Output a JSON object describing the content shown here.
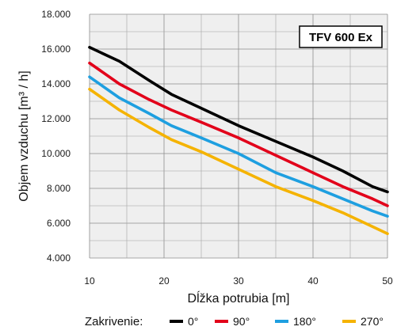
{
  "chart_data": {
    "type": "line",
    "title": "TFV 600 Ex",
    "xlabel": "Dĺžka potrubia [m]",
    "ylabel": "Objem vzduchu [m³ / h]",
    "xlim": [
      10,
      50
    ],
    "ylim": [
      4000,
      18000
    ],
    "x_ticks": [
      10,
      20,
      30,
      40,
      50
    ],
    "x_tick_labels": [
      "10",
      "20",
      "30",
      "40",
      "50"
    ],
    "y_ticks": [
      4000,
      6000,
      8000,
      10000,
      12000,
      14000,
      16000,
      18000
    ],
    "y_tick_labels": [
      "4.000",
      "6.000",
      "8.000",
      "10.000",
      "12.000",
      "14.000",
      "16.000",
      "18.000"
    ],
    "grid": true,
    "legend_title": "Zakrivenie:",
    "legend_position": "bottom",
    "series": [
      {
        "name": "0°",
        "color": "#000000",
        "x": [
          10,
          14,
          18,
          21,
          25,
          30,
          35,
          40,
          44,
          48,
          50
        ],
        "y": [
          16100,
          15300,
          14200,
          13400,
          12600,
          11600,
          10700,
          9800,
          9000,
          8100,
          7800
        ]
      },
      {
        "name": "90°",
        "color": "#e2001a",
        "x": [
          10,
          14,
          18,
          21,
          25,
          30,
          35,
          40,
          44,
          48,
          50
        ],
        "y": [
          15200,
          14000,
          13100,
          12500,
          11800,
          10900,
          9900,
          8900,
          8100,
          7400,
          7000
        ]
      },
      {
        "name": "180°",
        "color": "#1e9fe0",
        "x": [
          10,
          14,
          18,
          21,
          25,
          30,
          35,
          40,
          44,
          48,
          50
        ],
        "y": [
          14400,
          13200,
          12300,
          11600,
          10900,
          10000,
          8900,
          8100,
          7400,
          6700,
          6400
        ]
      },
      {
        "name": "270°",
        "color": "#f5b300",
        "x": [
          10,
          14,
          18,
          21,
          25,
          30,
          35,
          40,
          44,
          48,
          50
        ],
        "y": [
          13700,
          12500,
          11500,
          10800,
          10100,
          9100,
          8100,
          7300,
          6600,
          5800,
          5400
        ]
      }
    ]
  }
}
